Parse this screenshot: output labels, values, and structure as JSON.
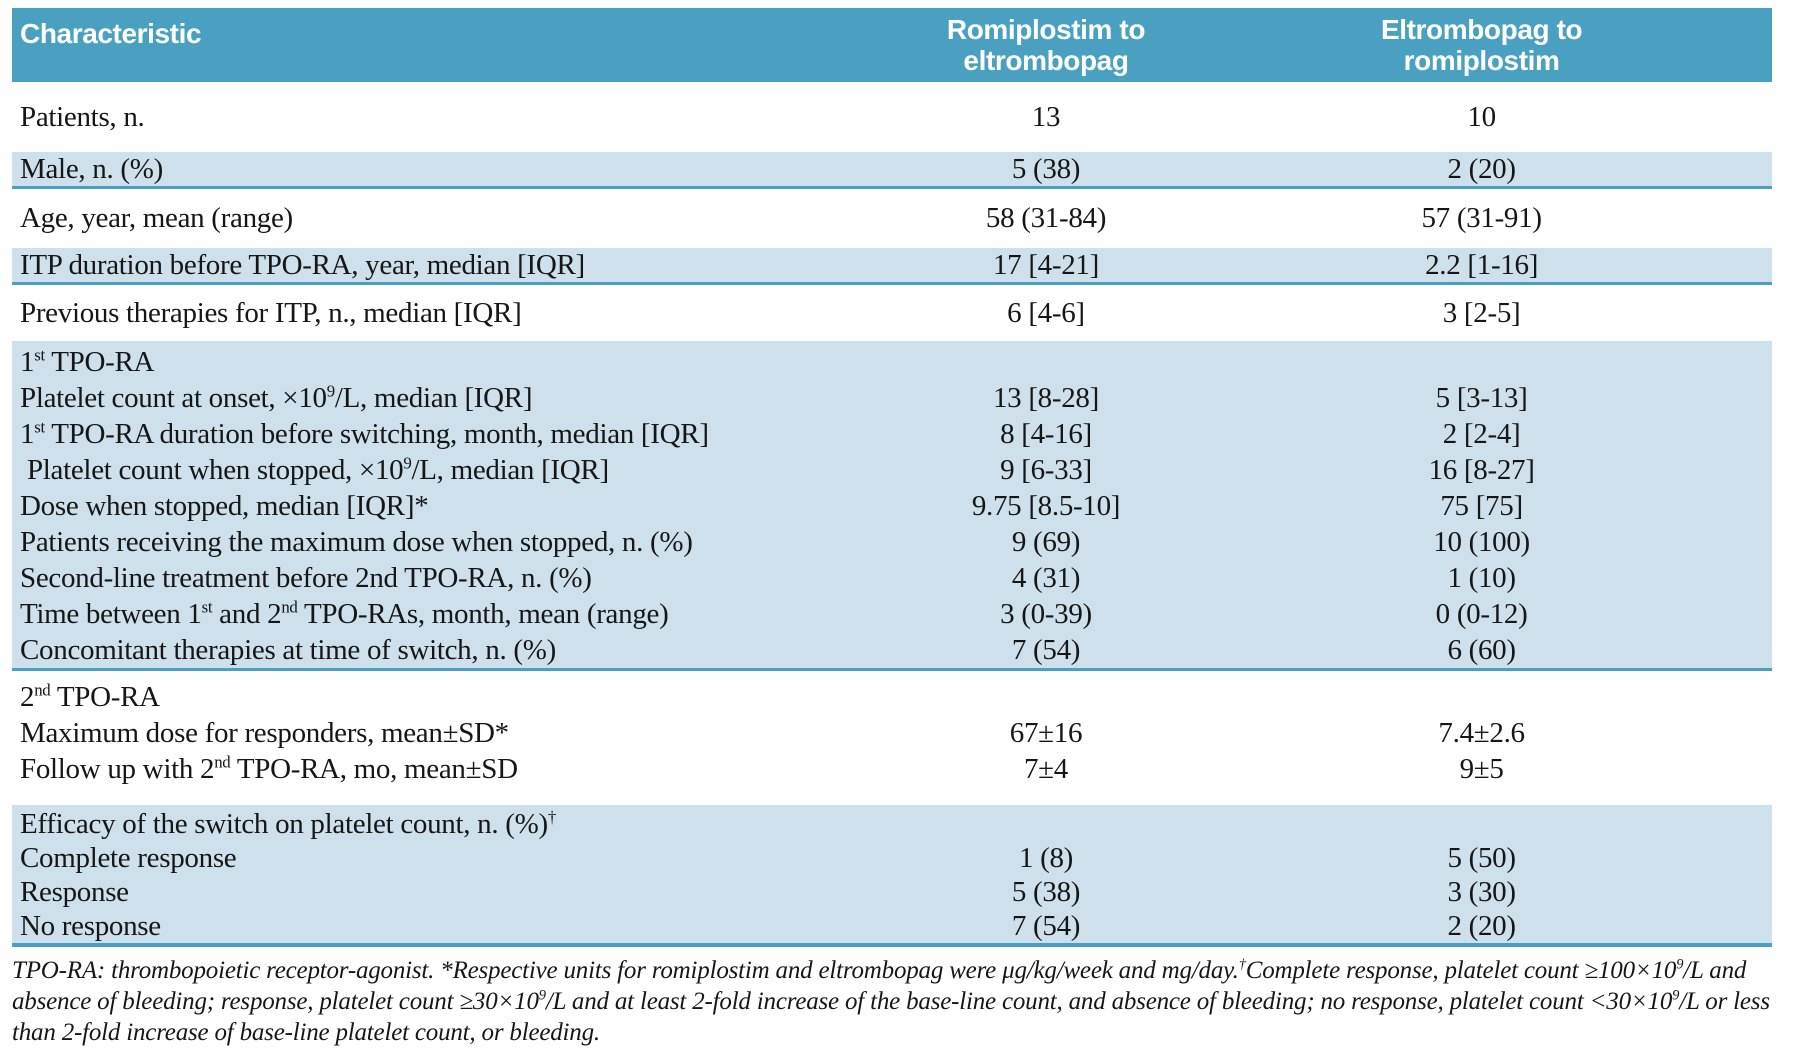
{
  "table": {
    "header": {
      "characteristic": "Characteristic",
      "col_rom_to_elt": "Romiplostim to eltrombopag",
      "col_elt_to_rom": "Eltrombopag to romiplostim"
    },
    "rows": [
      {
        "label": "Patients, n.",
        "c1": "13",
        "c2": "10"
      },
      {
        "label": "Male, n. (%)",
        "c1": "5 (38)",
        "c2": "2 (20)"
      },
      {
        "label": "Age, year, mean (range)",
        "c1": "58 (31-84)",
        "c2": "57 (31-91)"
      },
      {
        "label": "ITP duration before TPO-RA, year, median [IQR]",
        "c1": "17 [4-21]",
        "c2": "2.2 [1-16]"
      },
      {
        "label": "Previous therapies for ITP, n., median [IQR]",
        "c1": "6 [4-6]",
        "c2": "3 [2-5]"
      }
    ],
    "section_first": {
      "title": "1<sup>st</sup> TPO-RA",
      "items": [
        {
          "label": "Platelet count at onset, ×10<sup>9</sup>/L, median [IQR]",
          "c1": "13 [8-28]",
          "c2": "5 [3-13]"
        },
        {
          "label": "1<sup>st</sup> TPO-RA duration before switching, month, median [IQR]",
          "c1": "8 [4-16]",
          "c2": "2 [2-4]"
        },
        {
          "label": " Platelet count when stopped, ×10<sup>9</sup>/L, median [IQR]",
          "c1": "9 [6-33]",
          "c2": "16 [8-27]"
        },
        {
          "label": "Dose when stopped, median [IQR]*",
          "c1": "9.75 [8.5-10]",
          "c2": "75 [75]"
        },
        {
          "label": "Patients receiving the maximum dose when stopped, n. (%)",
          "c1": "9 (69)",
          "c2": "10 (100)"
        },
        {
          "label": "Second-line treatment before 2nd TPO-RA, n. (%)",
          "c1": "4 (31)",
          "c2": "1 (10)"
        },
        {
          "label": "Time between 1<sup>st</sup> and 2<sup>nd</sup> TPO-RAs, month, mean (range)",
          "c1": "3 (0-39)",
          "c2": "0 (0-12)"
        },
        {
          "label": "Concomitant therapies at time of switch, n. (%)",
          "c1": "7 (54)",
          "c2": "6 (60)"
        }
      ]
    },
    "section_second": {
      "title": "2<sup>nd</sup> TPO-RA",
      "items": [
        {
          "label": "Maximum dose for responders, mean±SD*",
          "c1": "67±16",
          "c2": "7.4±2.6"
        },
        {
          "label": "Follow up with 2<sup>nd</sup> TPO-RA, mo, mean±SD",
          "c1": "7±4",
          "c2": "9±5"
        }
      ]
    },
    "section_efficacy": {
      "title": "Efficacy of the switch on platelet count, n. (%)<sup>†</sup>",
      "items": [
        {
          "label": "Complete response",
          "c1": "1 (8)",
          "c2": "5 (50)"
        },
        {
          "label": "Response",
          "c1": "5 (38)",
          "c2": "3 (30)"
        },
        {
          "label": "No response",
          "c1": "7 (54)",
          "c2": "2 (20)"
        }
      ]
    },
    "footnote_html": "TPO-RA: thrombopoietic receptor-agonist. *Respective units for romiplostim and eltrombopag were μg/kg/week and mg/day.<sup>†</sup>Complete response, platelet count ≥100×10<sup>9</sup>/L and absence of bleeding; response, platelet count ≥30×10<sup>9</sup>/L and at least 2-fold increase of the base-line count, and absence of bleeding; no response, platelet count &lt;30×10<sup>9</sup>/L or less than 2-fold increase of base-line platelet count, or bleeding.",
    "colors": {
      "header_teal": "#49a0c0",
      "row_shade_blue": "#cde0ec",
      "rule_teal": "#49a0c0"
    }
  }
}
